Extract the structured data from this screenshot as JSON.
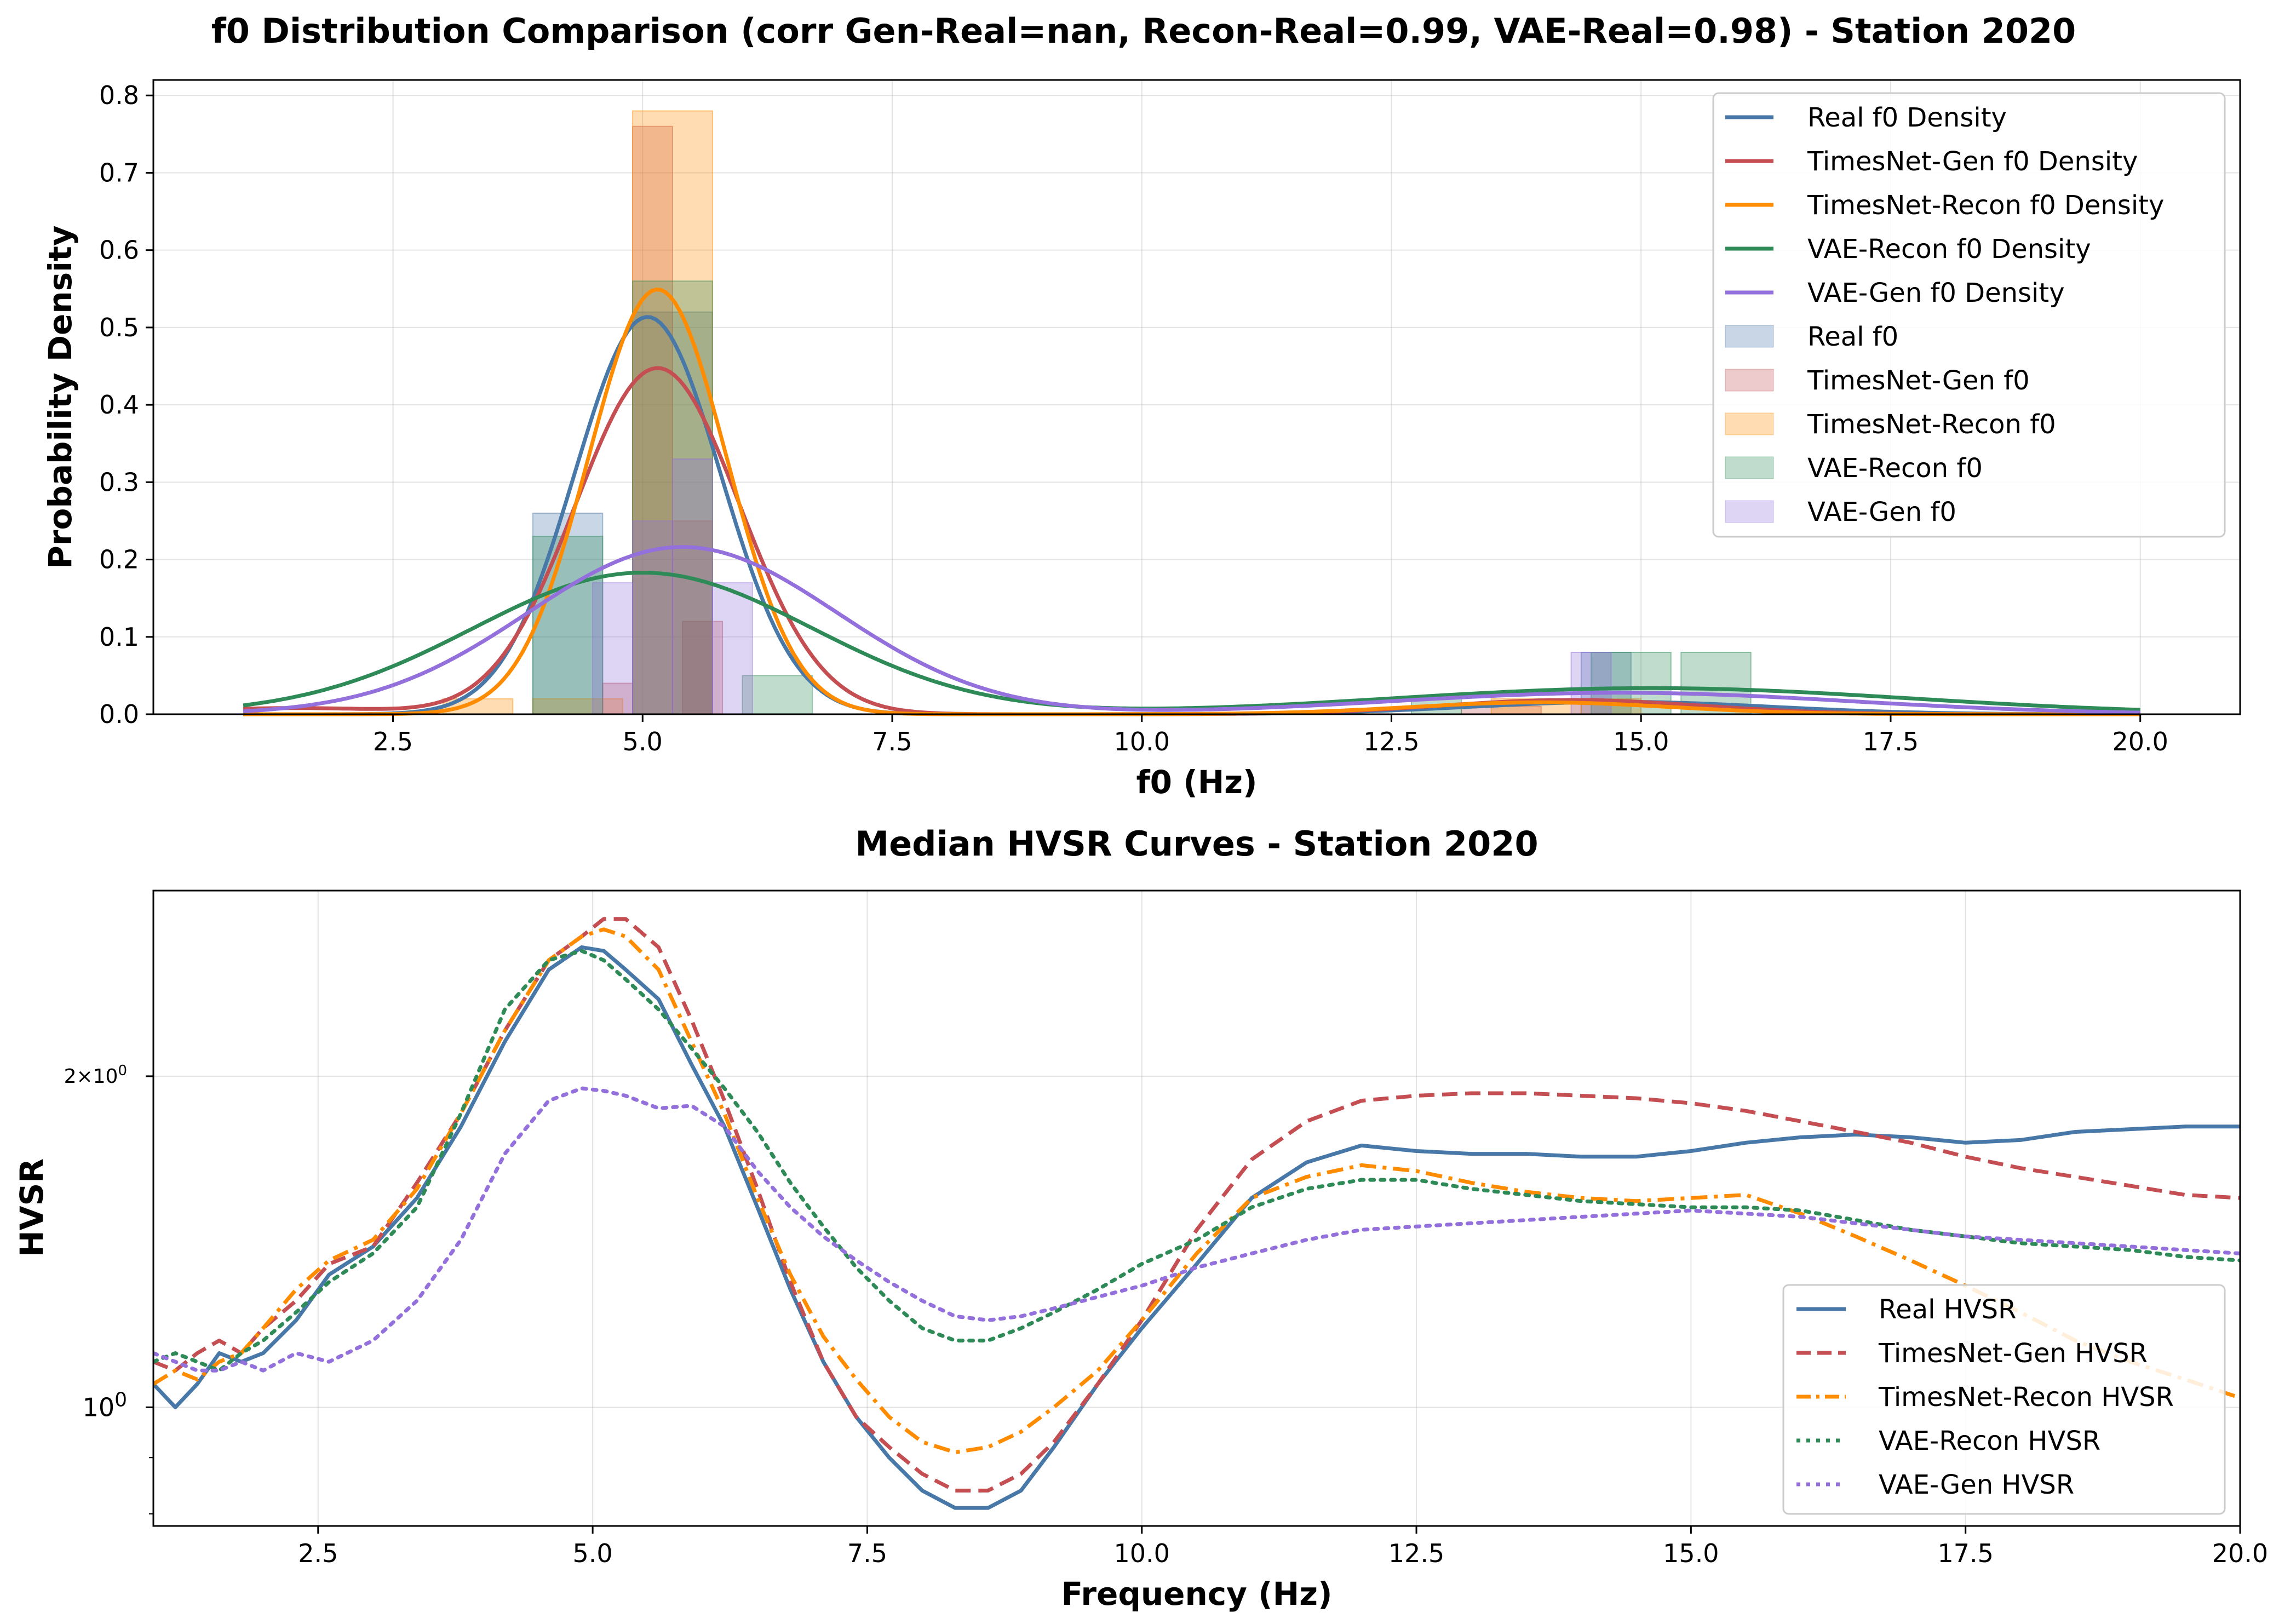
{
  "chart_data": [
    {
      "type": "bar+line",
      "title": "f0 Distribution Comparison (corr Gen-Real=nan, Recon-Real=0.99, VAE-Real=0.98) - Station 2020",
      "xlabel": "f0 (Hz)",
      "ylabel": "Probability Density",
      "xlim": [
        0.1,
        21.0
      ],
      "ylim": [
        0.0,
        0.82
      ],
      "xticks": [
        2.5,
        5.0,
        7.5,
        10.0,
        12.5,
        15.0,
        17.5,
        20.0
      ],
      "xtick_labels": [
        "2.5",
        "5.0",
        "7.5",
        "10.0",
        "12.5",
        "15.0",
        "17.5",
        "20.0"
      ],
      "yticks": [
        0.0,
        0.1,
        0.2,
        0.3,
        0.4,
        0.5,
        0.6,
        0.7,
        0.8
      ],
      "ytick_labels": [
        "0.0",
        "0.1",
        "0.2",
        "0.3",
        "0.4",
        "0.5",
        "0.6",
        "0.7",
        "0.8"
      ],
      "grid": true,
      "legend_position": "top-right",
      "legend": [
        "Real f0 Density",
        "TimesNet-Gen f0 Density",
        "TimesNet-Recon f0 Density",
        "VAE-Recon f0 Density",
        "VAE-Gen f0 Density",
        "Real f0",
        "TimesNet-Gen f0",
        "TimesNet-Recon f0",
        "VAE-Recon f0",
        "VAE-Gen f0"
      ],
      "density_series": [
        {
          "color": "#4878a8",
          "x_range": [
            1.0,
            20.0
          ],
          "components": [
            {
              "w": 0.94,
              "mu": 5.05,
              "sigma": 0.73
            },
            {
              "w": 0.06,
              "mu": 14.8,
              "sigma": 1.5
            }
          ]
        },
        {
          "color": "#c44e52",
          "x_range": [
            1.0,
            20.0
          ],
          "components": [
            {
              "w": 0.92,
              "mu": 5.15,
              "sigma": 0.82
            },
            {
              "w": 0.06,
              "mu": 14.3,
              "sigma": 1.3
            },
            {
              "w": 0.02,
              "mu": 1.5,
              "sigma": 1.0
            }
          ]
        },
        {
          "color": "#ff8c00",
          "x_range": [
            1.0,
            20.0
          ],
          "components": [
            {
              "w": 0.95,
              "mu": 5.15,
              "sigma": 0.69
            },
            {
              "w": 0.05,
              "mu": 14.0,
              "sigma": 1.3
            }
          ]
        },
        {
          "color": "#2e8b57",
          "x_range": [
            1.0,
            20.0
          ],
          "components": [
            {
              "w": 0.78,
              "mu": 5.0,
              "sigma": 1.7
            },
            {
              "w": 0.22,
              "mu": 15.1,
              "sigma": 2.6
            }
          ]
        },
        {
          "color": "#9370db",
          "x_range": [
            1.0,
            20.0
          ],
          "components": [
            {
              "w": 0.84,
              "mu": 5.4,
              "sigma": 1.55
            },
            {
              "w": 0.16,
              "mu": 14.8,
              "sigma": 2.3
            }
          ]
        }
      ],
      "histograms": [
        {
          "color": "#4878a8",
          "bins": [
            [
              3.9,
              4.6,
              0.26
            ],
            [
              4.9,
              5.7,
              0.52
            ],
            [
              5.4,
              5.7,
              0.12
            ],
            [
              14.4,
              14.9,
              0.08
            ]
          ]
        },
        {
          "color": "#c44e52",
          "bins": [
            [
              4.6,
              4.9,
              0.04
            ],
            [
              4.9,
              5.3,
              0.76
            ],
            [
              5.3,
              5.7,
              0.25
            ],
            [
              5.4,
              5.8,
              0.12
            ],
            [
              13.2,
              14.0,
              0.01
            ]
          ]
        },
        {
          "color": "#ff8c00",
          "bins": [
            [
              3.0,
              3.7,
              0.02
            ],
            [
              3.9,
              4.8,
              0.02
            ],
            [
              4.9,
              5.7,
              0.78
            ],
            [
              13.5,
              14.4,
              0.02
            ],
            [
              14.4,
              15.0,
              0.02
            ]
          ]
        },
        {
          "color": "#2e8b57",
          "bins": [
            [
              3.9,
              4.6,
              0.23
            ],
            [
              4.9,
              5.7,
              0.56
            ],
            [
              6.0,
              6.7,
              0.05
            ],
            [
              14.5,
              15.3,
              0.08
            ],
            [
              15.4,
              16.1,
              0.08
            ],
            [
              12.7,
              13.2,
              0.02
            ]
          ]
        },
        {
          "color": "#9370db",
          "bins": [
            [
              4.5,
              4.9,
              0.17
            ],
            [
              4.9,
              5.3,
              0.25
            ],
            [
              5.3,
              5.7,
              0.33
            ],
            [
              5.7,
              6.1,
              0.17
            ],
            [
              14.3,
              14.7,
              0.08
            ]
          ]
        }
      ]
    },
    {
      "type": "line",
      "title": "Median HVSR Curves - Station 2020",
      "xlabel": "Frequency (Hz)",
      "ylabel": "HVSR",
      "yscale": "log",
      "xlim": [
        1.0,
        20.0
      ],
      "ylim": [
        0.78,
        2.95
      ],
      "xticks": [
        2.5,
        5.0,
        7.5,
        10.0,
        12.5,
        15.0,
        17.5,
        20.0
      ],
      "xtick_labels": [
        "2.5",
        "5.0",
        "7.5",
        "10.0",
        "12.5",
        "15.0",
        "17.5",
        "20.0"
      ],
      "yticks": [
        1.0,
        2.0
      ],
      "ytick_labels": [
        "10^0",
        "2×10^0"
      ],
      "grid": true,
      "legend_position": "bottom-right",
      "series": [
        {
          "name": "Real HVSR",
          "color": "#4878a8",
          "dash": "solid",
          "x": [
            1.0,
            1.2,
            1.4,
            1.6,
            1.8,
            2.0,
            2.3,
            2.6,
            3.0,
            3.4,
            3.8,
            4.2,
            4.6,
            4.9,
            5.1,
            5.3,
            5.6,
            5.9,
            6.2,
            6.5,
            6.8,
            7.1,
            7.4,
            7.7,
            8.0,
            8.3,
            8.6,
            8.9,
            9.2,
            9.6,
            10.0,
            10.5,
            11.0,
            11.5,
            12.0,
            12.5,
            13.0,
            13.5,
            14.0,
            14.5,
            15.0,
            15.5,
            16.0,
            16.5,
            17.0,
            17.5,
            18.0,
            18.5,
            19.0,
            19.5,
            20.0
          ],
          "y": [
            1.05,
            1.0,
            1.05,
            1.12,
            1.1,
            1.12,
            1.2,
            1.32,
            1.4,
            1.55,
            1.8,
            2.15,
            2.5,
            2.62,
            2.6,
            2.5,
            2.35,
            2.05,
            1.8,
            1.52,
            1.28,
            1.1,
            0.98,
            0.9,
            0.84,
            0.81,
            0.81,
            0.84,
            0.92,
            1.05,
            1.18,
            1.35,
            1.55,
            1.67,
            1.73,
            1.71,
            1.7,
            1.7,
            1.69,
            1.69,
            1.71,
            1.74,
            1.76,
            1.77,
            1.76,
            1.74,
            1.75,
            1.78,
            1.79,
            1.8,
            1.8
          ]
        },
        {
          "name": "TimesNet-Gen HVSR",
          "color": "#c44e52",
          "dash": "dashed",
          "x": [
            1.0,
            1.2,
            1.4,
            1.6,
            1.8,
            2.0,
            2.3,
            2.6,
            3.0,
            3.4,
            3.8,
            4.2,
            4.6,
            4.9,
            5.1,
            5.3,
            5.6,
            5.9,
            6.2,
            6.5,
            6.8,
            7.1,
            7.4,
            7.7,
            8.0,
            8.3,
            8.6,
            8.9,
            9.2,
            9.6,
            10.0,
            10.5,
            11.0,
            11.5,
            12.0,
            12.5,
            13.0,
            13.5,
            14.0,
            14.5,
            15.0,
            15.5,
            16.0,
            16.5,
            17.0,
            17.5,
            18.0,
            18.5,
            19.0,
            19.5,
            20.0
          ],
          "y": [
            1.1,
            1.08,
            1.12,
            1.15,
            1.12,
            1.18,
            1.25,
            1.35,
            1.4,
            1.6,
            1.85,
            2.2,
            2.55,
            2.68,
            2.78,
            2.78,
            2.62,
            2.25,
            1.9,
            1.58,
            1.3,
            1.1,
            0.98,
            0.92,
            0.87,
            0.84,
            0.84,
            0.87,
            0.93,
            1.05,
            1.2,
            1.45,
            1.68,
            1.82,
            1.9,
            1.92,
            1.93,
            1.93,
            1.92,
            1.91,
            1.89,
            1.86,
            1.82,
            1.78,
            1.74,
            1.69,
            1.65,
            1.62,
            1.59,
            1.56,
            1.55
          ]
        },
        {
          "name": "TimesNet-Recon HVSR",
          "color": "#ff8c00",
          "dash": "dashdot",
          "x": [
            1.0,
            1.2,
            1.4,
            1.6,
            1.8,
            2.0,
            2.3,
            2.6,
            3.0,
            3.4,
            3.8,
            4.2,
            4.6,
            4.9,
            5.1,
            5.3,
            5.6,
            5.9,
            6.2,
            6.5,
            6.8,
            7.1,
            7.4,
            7.7,
            8.0,
            8.3,
            8.6,
            8.9,
            9.2,
            9.6,
            10.0,
            10.5,
            11.0,
            11.5,
            12.0,
            12.5,
            13.0,
            13.5,
            14.0,
            14.5,
            15.0,
            15.5,
            16.0,
            16.5,
            17.0,
            17.5,
            18.0,
            18.5,
            19.0,
            19.5,
            20.0
          ],
          "y": [
            1.05,
            1.08,
            1.06,
            1.1,
            1.12,
            1.18,
            1.28,
            1.36,
            1.42,
            1.58,
            1.85,
            2.2,
            2.55,
            2.68,
            2.72,
            2.68,
            2.5,
            2.15,
            1.85,
            1.55,
            1.32,
            1.16,
            1.06,
            0.98,
            0.93,
            0.91,
            0.92,
            0.95,
            1.0,
            1.08,
            1.2,
            1.38,
            1.55,
            1.62,
            1.66,
            1.64,
            1.6,
            1.57,
            1.55,
            1.54,
            1.55,
            1.56,
            1.5,
            1.43,
            1.36,
            1.29,
            1.22,
            1.15,
            1.1,
            1.06,
            1.02
          ]
        },
        {
          "name": "VAE-Recon HVSR",
          "color": "#2e8b57",
          "dash": "dotted",
          "x": [
            1.0,
            1.2,
            1.4,
            1.6,
            1.8,
            2.0,
            2.3,
            2.6,
            3.0,
            3.4,
            3.8,
            4.2,
            4.6,
            4.9,
            5.1,
            5.3,
            5.6,
            5.9,
            6.2,
            6.5,
            6.8,
            7.1,
            7.4,
            7.7,
            8.0,
            8.3,
            8.6,
            8.9,
            9.2,
            9.6,
            10.0,
            10.5,
            11.0,
            11.5,
            12.0,
            12.5,
            13.0,
            13.5,
            14.0,
            14.5,
            15.0,
            15.5,
            16.0,
            16.5,
            17.0,
            17.5,
            18.0,
            18.5,
            19.0,
            19.5,
            20.0
          ],
          "y": [
            1.1,
            1.12,
            1.1,
            1.08,
            1.12,
            1.15,
            1.22,
            1.3,
            1.38,
            1.52,
            1.85,
            2.3,
            2.55,
            2.6,
            2.55,
            2.45,
            2.3,
            2.12,
            1.95,
            1.78,
            1.6,
            1.46,
            1.34,
            1.25,
            1.18,
            1.15,
            1.15,
            1.18,
            1.22,
            1.28,
            1.35,
            1.42,
            1.52,
            1.58,
            1.61,
            1.61,
            1.58,
            1.56,
            1.54,
            1.53,
            1.52,
            1.52,
            1.51,
            1.48,
            1.45,
            1.43,
            1.41,
            1.4,
            1.39,
            1.37,
            1.36
          ]
        },
        {
          "name": "VAE-Gen HVSR",
          "color": "#9370db",
          "dash": "dotted",
          "x": [
            1.0,
            1.2,
            1.4,
            1.6,
            1.8,
            2.0,
            2.3,
            2.6,
            3.0,
            3.4,
            3.8,
            4.2,
            4.6,
            4.9,
            5.1,
            5.3,
            5.6,
            5.9,
            6.2,
            6.5,
            6.8,
            7.1,
            7.4,
            7.7,
            8.0,
            8.3,
            8.6,
            8.9,
            9.2,
            9.6,
            10.0,
            10.5,
            11.0,
            11.5,
            12.0,
            12.5,
            13.0,
            13.5,
            14.0,
            14.5,
            15.0,
            15.5,
            16.0,
            16.5,
            17.0,
            17.5,
            18.0,
            18.5,
            19.0,
            19.5,
            20.0
          ],
          "y": [
            1.12,
            1.1,
            1.08,
            1.08,
            1.1,
            1.08,
            1.12,
            1.1,
            1.15,
            1.25,
            1.42,
            1.7,
            1.9,
            1.95,
            1.94,
            1.92,
            1.87,
            1.88,
            1.8,
            1.64,
            1.52,
            1.43,
            1.36,
            1.3,
            1.25,
            1.21,
            1.2,
            1.21,
            1.23,
            1.26,
            1.29,
            1.34,
            1.38,
            1.42,
            1.45,
            1.46,
            1.47,
            1.48,
            1.49,
            1.5,
            1.51,
            1.5,
            1.49,
            1.47,
            1.45,
            1.43,
            1.42,
            1.41,
            1.4,
            1.39,
            1.38
          ]
        }
      ]
    }
  ]
}
